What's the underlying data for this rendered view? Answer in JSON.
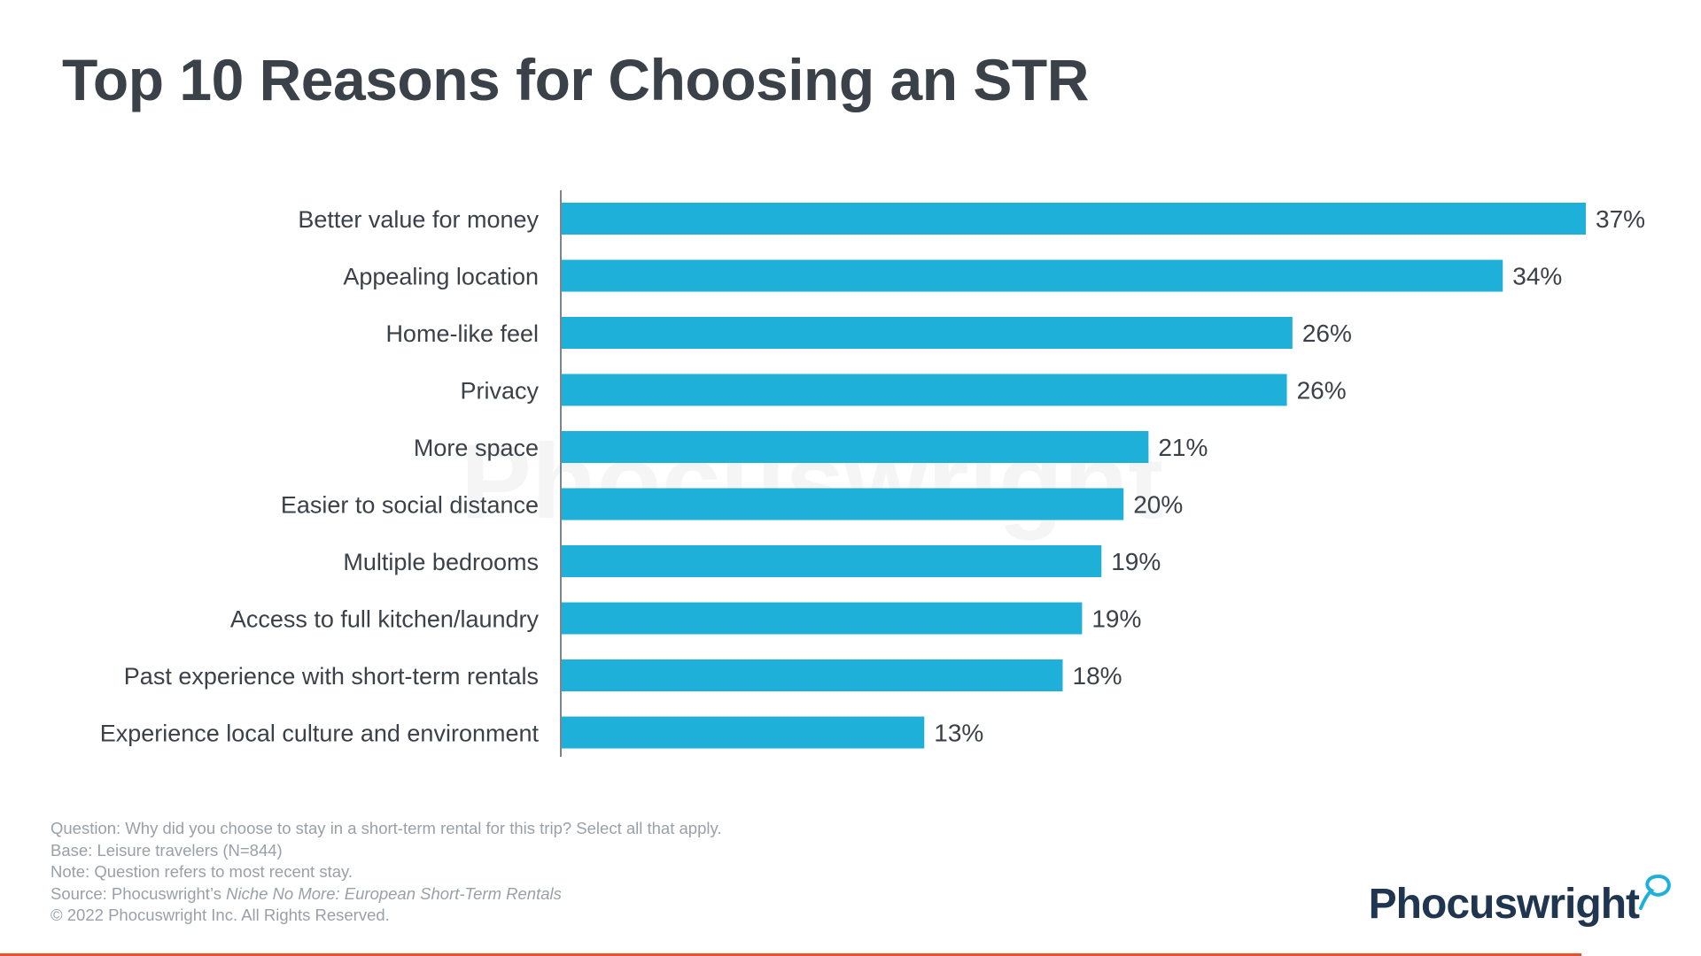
{
  "title": "Top 10 Reasons for Choosing an STR",
  "chart_data": {
    "type": "bar",
    "orientation": "horizontal",
    "title": "Top 10 Reasons for Choosing an STR",
    "categories": [
      "Better value for money",
      "Appealing location",
      "Home-like feel",
      "Privacy",
      "More  space",
      "Easier to social distance",
      "Multiple bedrooms",
      "Access to full kitchen/laundry",
      "Past experience with short-term rentals",
      "Experience local culture and environment"
    ],
    "values": [
      37,
      34,
      26,
      26,
      21,
      20,
      19,
      19,
      18,
      13
    ],
    "value_labels": [
      "37%",
      "34%",
      "26%",
      "26%",
      "21%",
      "20%",
      "19%",
      "19%",
      "18%",
      "13%"
    ],
    "value_scale": [
      37,
      34,
      26.4,
      26.2,
      21.2,
      20.3,
      19.5,
      18.8,
      18.1,
      13.1
    ],
    "xlim": [
      0,
      40
    ],
    "bar_color": "#1fb0d9",
    "grid": false,
    "watermark": "Phocuswright"
  },
  "notes": {
    "question": "Question: Why did you choose to stay in a short-term rental for this trip? Select all that apply.",
    "base": "Base: Leisure travelers (N=844)",
    "note": "Note: Question refers to most recent stay.",
    "source_prefix": "Source: Phocuswright’s ",
    "source_title": "Niche No More: European Short-Term Rentals",
    "copyright": "© 2022 Phocuswright Inc. All Rights Reserved."
  },
  "logo": {
    "text": "Phocuswright",
    "icon": "swirl-icon",
    "color": "#1f3550",
    "accent": "#1fb0d9"
  },
  "accent_bar_color": "#e8502a"
}
